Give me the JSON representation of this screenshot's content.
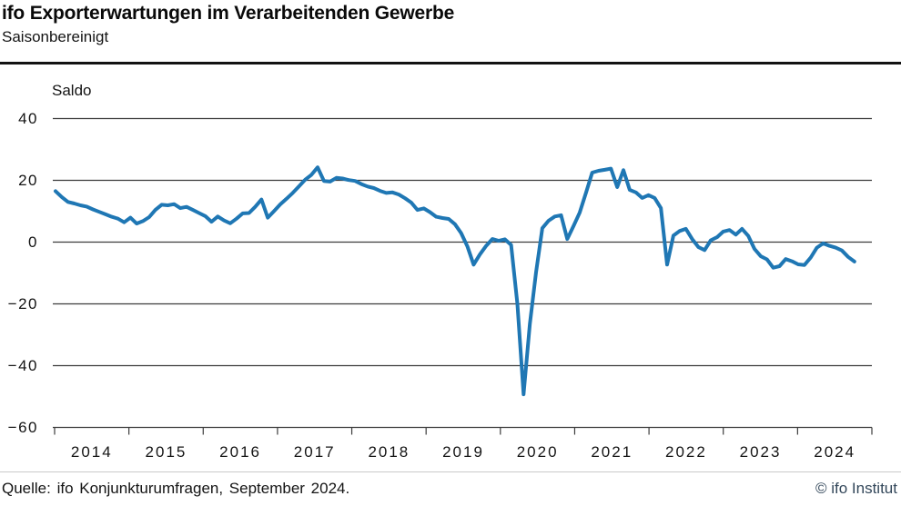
{
  "header": {
    "title": "ifo Exporterwartungen im Verarbeitenden Gewerbe",
    "subtitle": "Saisonbereinigt"
  },
  "footer": {
    "source": "Quelle: ifo Konjunkturumfragen, September 2024.",
    "copyright": "© ifo Institut"
  },
  "chart_data": {
    "type": "line",
    "title": "ifo Exporterwartungen im Verarbeitenden Gewerbe",
    "subtitle": "Saisonbereinigt",
    "ylabel": "Saldo",
    "xlabel": "",
    "legend": "none",
    "grid": "horizontal",
    "line_color": "#1f77b4",
    "gridline_color": "#3c3c3c",
    "ylim": [
      -60,
      40
    ],
    "y_ticks": [
      40,
      20,
      0,
      -20,
      -40,
      -60
    ],
    "y_tick_labels": [
      "40",
      "20",
      "0",
      "−20",
      "−40",
      "−60"
    ],
    "x_tick_labels": [
      "2014",
      "2015",
      "2016",
      "2017",
      "2018",
      "2019",
      "2020",
      "2021",
      "2022",
      "2023",
      "2024"
    ],
    "x_range": "monthly from 2014-01 to 2024-09",
    "series": [
      {
        "name": "Exporterwartungen (Saldo, saisonbereinigt)",
        "start": "2014-01",
        "end": "2024-09",
        "frequency": "monthly",
        "values": [
          16.5,
          14.6,
          13.0,
          12.5,
          11.9,
          11.5,
          10.6,
          9.8,
          9.0,
          8.2,
          7.6,
          6.4,
          7.9,
          6.0,
          6.8,
          8.1,
          10.4,
          12.1,
          11.9,
          12.3,
          11.0,
          11.4,
          10.4,
          9.4,
          8.4,
          6.6,
          8.3,
          7.0,
          6.1,
          7.6,
          9.3,
          9.4,
          11.4,
          13.8,
          7.9,
          10.0,
          12.2,
          14.0,
          15.9,
          18.0,
          20.2,
          21.8,
          24.2,
          19.8,
          19.6,
          20.8,
          20.6,
          20.1,
          19.8,
          18.8,
          18.0,
          17.5,
          16.6,
          15.9,
          16.1,
          15.4,
          14.2,
          12.8,
          10.4,
          10.9,
          9.7,
          8.2,
          7.8,
          7.5,
          5.8,
          2.9,
          -1.4,
          -7.3,
          -4.0,
          -1.2,
          1.0,
          0.4,
          0.9,
          -0.9,
          -20.0,
          -49.3,
          -26.5,
          -9.8,
          4.5,
          6.9,
          8.3,
          8.7,
          1.0,
          5.2,
          9.6,
          16.0,
          22.5,
          23.1,
          23.4,
          23.8,
          17.8,
          23.3,
          16.9,
          16.1,
          14.3,
          15.2,
          14.3,
          11.0,
          -7.3,
          2.1,
          3.6,
          4.3,
          1.0,
          -1.6,
          -2.6,
          0.6,
          1.6,
          3.4,
          3.9,
          2.4,
          4.3,
          2.0,
          -2.2,
          -4.6,
          -5.6,
          -8.3,
          -7.8,
          -5.5,
          -6.2,
          -7.2,
          -7.4,
          -5.0,
          -1.8,
          -0.4,
          -1.2,
          -1.8,
          -2.7,
          -4.8,
          -6.3
        ]
      }
    ]
  }
}
